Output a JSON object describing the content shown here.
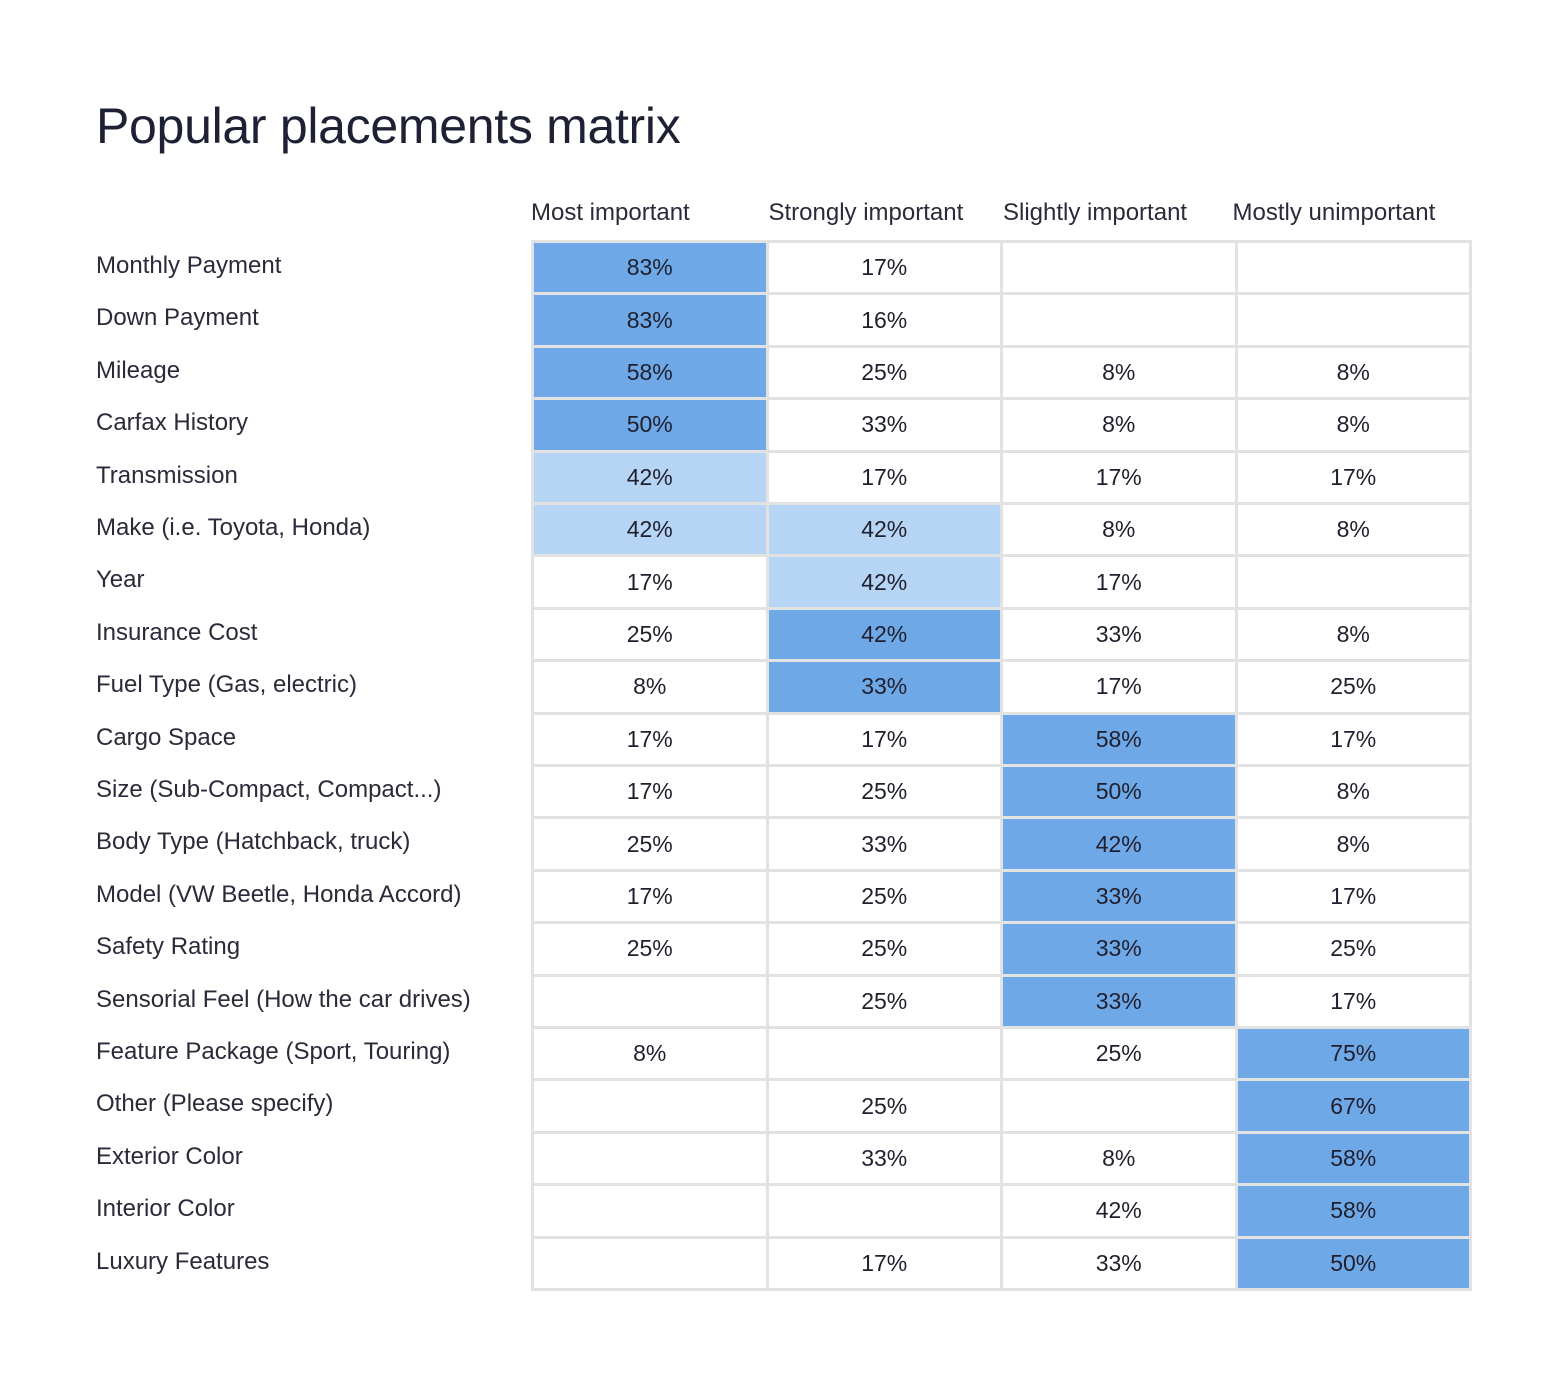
{
  "title": "Popular placements matrix",
  "colors": {
    "high": "#6fa8e6",
    "medium": "#b6d5f4",
    "none": "#ffffff",
    "border": "#e2e2e2"
  },
  "chart_data": {
    "type": "heatmap",
    "title": "Popular placements matrix",
    "columns": [
      "Most important",
      "Strongly important",
      "Slightly important",
      "Mostly unimportant"
    ],
    "rows": [
      {
        "label": "Monthly Payment",
        "values": [
          "83%",
          "17%",
          "",
          ""
        ],
        "highlight": [
          "high",
          "none",
          "none",
          "none"
        ]
      },
      {
        "label": "Down Payment",
        "values": [
          "83%",
          "16%",
          "",
          ""
        ],
        "highlight": [
          "high",
          "none",
          "none",
          "none"
        ]
      },
      {
        "label": "Mileage",
        "values": [
          "58%",
          "25%",
          "8%",
          "8%"
        ],
        "highlight": [
          "high",
          "none",
          "none",
          "none"
        ]
      },
      {
        "label": "Carfax History",
        "values": [
          "50%",
          "33%",
          "8%",
          "8%"
        ],
        "highlight": [
          "high",
          "none",
          "none",
          "none"
        ]
      },
      {
        "label": "Transmission",
        "values": [
          "42%",
          "17%",
          "17%",
          "17%"
        ],
        "highlight": [
          "medium",
          "none",
          "none",
          "none"
        ]
      },
      {
        "label": "Make (i.e. Toyota, Honda)",
        "values": [
          "42%",
          "42%",
          "8%",
          "8%"
        ],
        "highlight": [
          "medium",
          "medium",
          "none",
          "none"
        ]
      },
      {
        "label": "Year",
        "values": [
          "17%",
          "42%",
          "17%",
          ""
        ],
        "highlight": [
          "none",
          "medium",
          "none",
          "none"
        ]
      },
      {
        "label": "Insurance Cost",
        "values": [
          "25%",
          "42%",
          "33%",
          "8%"
        ],
        "highlight": [
          "none",
          "high",
          "none",
          "none"
        ]
      },
      {
        "label": "Fuel Type (Gas, electric)",
        "values": [
          "8%",
          "33%",
          "17%",
          "25%"
        ],
        "highlight": [
          "none",
          "high",
          "none",
          "none"
        ]
      },
      {
        "label": "Cargo Space",
        "values": [
          "17%",
          "17%",
          "58%",
          "17%"
        ],
        "highlight": [
          "none",
          "none",
          "high",
          "none"
        ]
      },
      {
        "label": "Size (Sub-Compact, Compact...)",
        "values": [
          "17%",
          "25%",
          "50%",
          "8%"
        ],
        "highlight": [
          "none",
          "none",
          "high",
          "none"
        ]
      },
      {
        "label": "Body Type (Hatchback, truck)",
        "values": [
          "25%",
          "33%",
          "42%",
          "8%"
        ],
        "highlight": [
          "none",
          "none",
          "high",
          "none"
        ]
      },
      {
        "label": "Model (VW Beetle, Honda Accord)",
        "values": [
          "17%",
          "25%",
          "33%",
          "17%"
        ],
        "highlight": [
          "none",
          "none",
          "high",
          "none"
        ]
      },
      {
        "label": "Safety Rating",
        "values": [
          "25%",
          "25%",
          "33%",
          "25%"
        ],
        "highlight": [
          "none",
          "none",
          "high",
          "none"
        ]
      },
      {
        "label": "Sensorial Feel (How the car drives)",
        "values": [
          "",
          "25%",
          "33%",
          "17%"
        ],
        "highlight": [
          "none",
          "none",
          "high",
          "none"
        ]
      },
      {
        "label": "Feature Package (Sport, Touring)",
        "values": [
          "8%",
          "",
          "25%",
          "75%"
        ],
        "highlight": [
          "none",
          "none",
          "none",
          "high"
        ]
      },
      {
        "label": "Other (Please specify)",
        "values": [
          "",
          "25%",
          "",
          "67%"
        ],
        "highlight": [
          "none",
          "none",
          "none",
          "high"
        ]
      },
      {
        "label": "Exterior Color",
        "values": [
          "",
          "33%",
          "8%",
          "58%"
        ],
        "highlight": [
          "none",
          "none",
          "none",
          "high"
        ]
      },
      {
        "label": "Interior Color",
        "values": [
          "",
          "",
          "42%",
          "58%"
        ],
        "highlight": [
          "none",
          "none",
          "none",
          "high"
        ]
      },
      {
        "label": "Luxury Features",
        "values": [
          "",
          "17%",
          "33%",
          "50%"
        ],
        "highlight": [
          "none",
          "none",
          "none",
          "high"
        ]
      }
    ]
  }
}
